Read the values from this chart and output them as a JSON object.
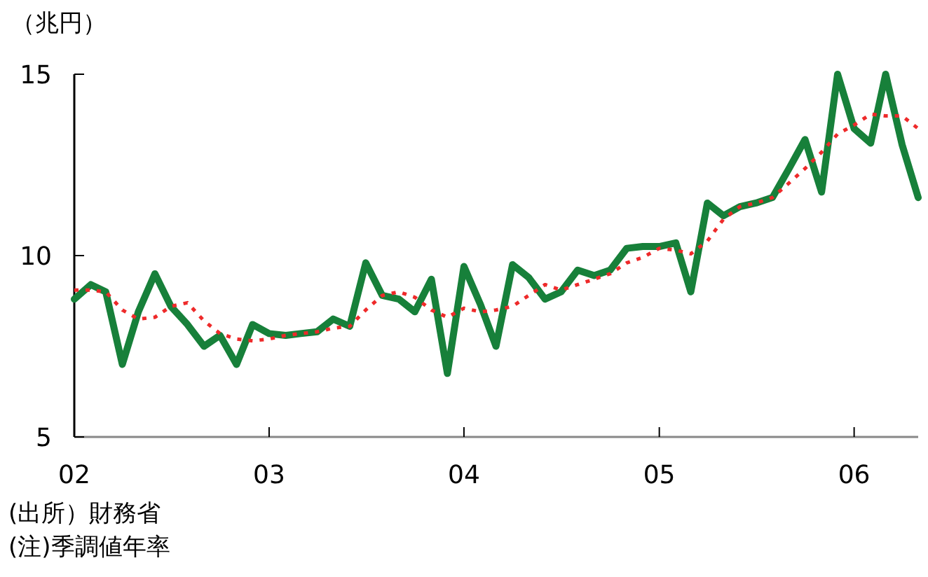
{
  "chart_data": {
    "type": "line",
    "ylabel": "（兆円）",
    "x": [
      "2002-01",
      "2002-02",
      "2002-03",
      "2002-04",
      "2002-05",
      "2002-06",
      "2002-07",
      "2002-08",
      "2002-09",
      "2002-10",
      "2002-11",
      "2002-12",
      "2003-01",
      "2003-02",
      "2003-03",
      "2003-04",
      "2003-05",
      "2003-06",
      "2003-07",
      "2003-08",
      "2003-09",
      "2003-10",
      "2003-11",
      "2003-12",
      "2004-01",
      "2004-02",
      "2004-03",
      "2004-04",
      "2004-05",
      "2004-06",
      "2004-07",
      "2004-08",
      "2004-09",
      "2004-10",
      "2004-11",
      "2004-12",
      "2005-01",
      "2005-02",
      "2005-03",
      "2005-04",
      "2005-05",
      "2005-06",
      "2005-07",
      "2005-08",
      "2005-09",
      "2005-10",
      "2005-11",
      "2005-12",
      "2006-01",
      "2006-02",
      "2006-03",
      "2006-04",
      "2006-05"
    ],
    "series": [
      {
        "color": "#17803a",
        "line_style": "solid",
        "values": [
          8.8,
          9.2,
          9.0,
          7.0,
          8.45,
          9.5,
          8.6,
          8.1,
          7.5,
          7.8,
          7.0,
          8.1,
          7.85,
          7.8,
          7.85,
          7.9,
          8.25,
          8.05,
          9.8,
          8.9,
          8.8,
          8.45,
          9.35,
          6.75,
          9.7,
          8.65,
          7.5,
          9.75,
          9.4,
          8.8,
          9.0,
          9.6,
          9.45,
          9.6,
          10.2,
          10.25,
          10.25,
          10.35,
          9.0,
          11.45,
          11.1,
          11.35,
          11.45,
          11.6,
          12.4,
          13.2,
          11.75,
          15.0,
          13.5,
          13.1,
          15.0,
          13.05,
          11.6
        ]
      },
      {
        "color": "#ee2a2a",
        "line_style": "dotted",
        "values": [
          9.05,
          9.05,
          9.0,
          8.5,
          8.25,
          8.3,
          8.6,
          8.7,
          8.2,
          7.85,
          7.7,
          7.65,
          7.7,
          7.8,
          7.85,
          7.9,
          8.0,
          8.05,
          8.5,
          8.9,
          9.0,
          8.85,
          8.5,
          8.3,
          8.55,
          8.45,
          8.5,
          8.6,
          8.9,
          9.2,
          9.05,
          9.2,
          9.35,
          9.5,
          9.8,
          9.95,
          10.2,
          10.15,
          10.05,
          10.4,
          11.0,
          11.35,
          11.45,
          11.6,
          12.0,
          12.4,
          12.85,
          13.35,
          13.6,
          13.9,
          13.85,
          13.85,
          13.5
        ]
      }
    ],
    "xlim": [
      "2002-01",
      "2006-05"
    ],
    "xticks": [
      {
        "value": "2002-01",
        "label": "02"
      },
      {
        "value": "2003-01",
        "label": "03"
      },
      {
        "value": "2004-01",
        "label": "04"
      },
      {
        "value": "2005-01",
        "label": "05"
      },
      {
        "value": "2006-01",
        "label": "06"
      }
    ],
    "ylim": [
      5,
      15
    ],
    "yticks": [
      5,
      10,
      15
    ],
    "annotations": [
      "(出所）財務省",
      "(注)季調値年率"
    ]
  }
}
